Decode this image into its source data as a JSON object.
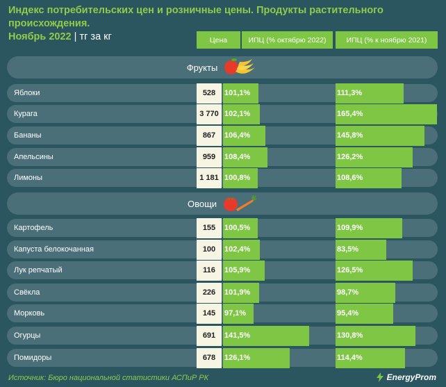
{
  "title_line1": "Индекс потребительских цен и розничные цены. Продукты растительного происхождения.",
  "title_line2": "Ноябрь 2022",
  "title_separator": "|",
  "unit": "тг за кг",
  "columns": [
    "Цена",
    "ИПЦ (% октябрю 2022)",
    "ИПЦ (% к ноябрю 2021)"
  ],
  "colors": {
    "background": "#2b5660",
    "accent": "#7ec644",
    "row": "#4a6f79",
    "price_box": "#f6f5e3"
  },
  "source": "Источник: Бюро национальной статистики АСПиР РК",
  "brand": "EnergyProm",
  "chart_data": {
    "type": "table",
    "title": "Индекс потребительских цен и розничные цены. Продукты растительного происхождения. Ноябрь 2022",
    "sections": [
      {
        "name": "Фрукты",
        "icon": "fruit-icon",
        "rows": [
          {
            "name": "Яблоки",
            "price": "528",
            "cpi_oct": 101.1,
            "cpi_oct_label": "101,1%",
            "cpi_nov": 111.3,
            "cpi_nov_label": "111,3%"
          },
          {
            "name": "Курага",
            "price": "3 770",
            "cpi_oct": 102.1,
            "cpi_oct_label": "102,1%",
            "cpi_nov": 165.4,
            "cpi_nov_label": "165,4%"
          },
          {
            "name": "Бананы",
            "price": "867",
            "cpi_oct": 106.4,
            "cpi_oct_label": "106,4%",
            "cpi_nov": 145.8,
            "cpi_nov_label": "145,8%"
          },
          {
            "name": "Апельсины",
            "price": "959",
            "cpi_oct": 108.4,
            "cpi_oct_label": "108,4%",
            "cpi_nov": 126.2,
            "cpi_nov_label": "126,2%"
          },
          {
            "name": "Лимоны",
            "price": "1 181",
            "cpi_oct": 100.8,
            "cpi_oct_label": "100,8%",
            "cpi_nov": 108.6,
            "cpi_nov_label": "108,6%"
          }
        ]
      },
      {
        "name": "Овощи",
        "icon": "vegetable-icon",
        "rows": [
          {
            "name": "Картофель",
            "price": "155",
            "cpi_oct": 100.5,
            "cpi_oct_label": "100,5%",
            "cpi_nov": 109.9,
            "cpi_nov_label": "109,9%"
          },
          {
            "name": "Капуста белокочанная",
            "price": "100",
            "cpi_oct": 102.4,
            "cpi_oct_label": "102,4%",
            "cpi_nov": 83.5,
            "cpi_nov_label": "83,5%"
          },
          {
            "name": "Лук репчатый",
            "price": "116",
            "cpi_oct": 105.9,
            "cpi_oct_label": "105,9%",
            "cpi_nov": 126.5,
            "cpi_nov_label": "126,5%"
          },
          {
            "name": "Свёкла",
            "price": "226",
            "cpi_oct": 101.9,
            "cpi_oct_label": "101,9%",
            "cpi_nov": 98.7,
            "cpi_nov_label": "98,7%"
          },
          {
            "name": "Морковь",
            "price": "145",
            "cpi_oct": 97.1,
            "cpi_oct_label": "97,1%",
            "cpi_nov": 95.4,
            "cpi_nov_label": "95,4%"
          },
          {
            "name": "Огурцы",
            "price": "691",
            "cpi_oct": 141.5,
            "cpi_oct_label": "141,5%",
            "cpi_nov": 130.8,
            "cpi_nov_label": "130,8%"
          },
          {
            "name": "Помидоры",
            "price": "678",
            "cpi_oct": 126.1,
            "cpi_oct_label": "126,1%",
            "cpi_nov": 114.4,
            "cpi_nov_label": "114,4%"
          }
        ]
      }
    ]
  }
}
